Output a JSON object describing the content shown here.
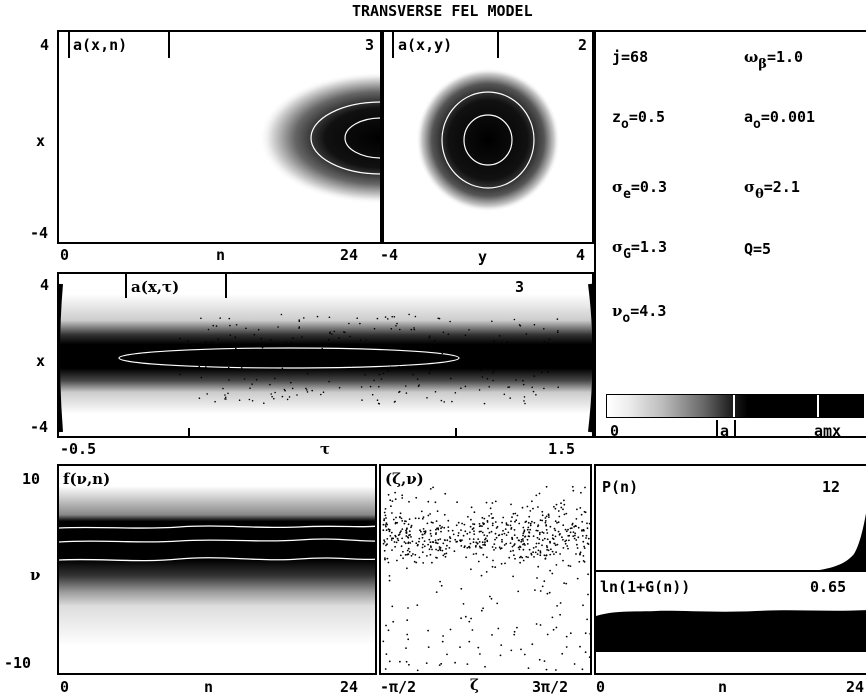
{
  "title": "TRANSVERSE FEL MODEL",
  "panel_axn": {
    "label": "a(x,n)",
    "num": "3",
    "y_top": "4",
    "y_mid": "x",
    "y_bot": "-4",
    "x_left": "0",
    "x_mid": "n",
    "x_right": "24"
  },
  "panel_axy": {
    "label": "a(x,y)",
    "num": "2",
    "x_left": "-4",
    "x_mid": "y",
    "x_right": "4"
  },
  "panel_axt": {
    "label": "a(x,τ)",
    "num": "3",
    "y_top": "4",
    "y_mid": "x",
    "y_bot": "-4",
    "x_left": "-0.5",
    "x_mid": "τ",
    "x_right": "1.5"
  },
  "params": {
    "j": "j=68",
    "omega_beta": "ωβ=1.0",
    "z0": "zo=0.5",
    "a0": "ao=0.001",
    "sigma_e": "σe=0.3",
    "sigma_theta": "σθ=2.1",
    "sigma_G": "σG=1.3",
    "Q": "Q=5",
    "nu0": "νo=4.3"
  },
  "colorbar": {
    "left": "0",
    "mid": "|a|",
    "right": "amx"
  },
  "panel_fvn": {
    "label": "f(ν,n)",
    "y_top": "10",
    "y_mid": "ν",
    "y_bot": "-10",
    "x_left": "0",
    "x_mid": "n",
    "x_right": "24"
  },
  "panel_zn": {
    "label": "(ζ,ν)",
    "x_left": "-π/2",
    "x_mid": "ζ",
    "x_right": "3π/2"
  },
  "panel_pn": {
    "label": "P(n)",
    "num": "12"
  },
  "panel_gn": {
    "label": "ln(1+G(n))",
    "num": "0.65",
    "x_left": "0",
    "x_mid": "n",
    "x_right": "24"
  }
}
